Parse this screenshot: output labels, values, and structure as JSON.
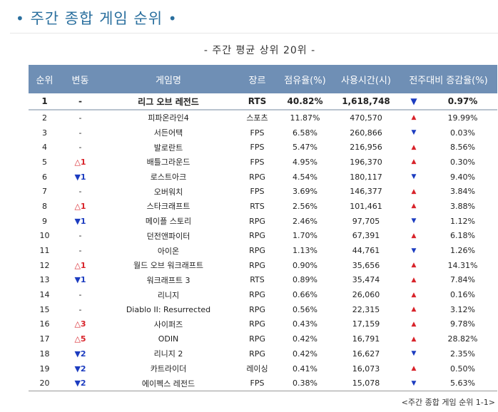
{
  "title": "주간 종합 게임 순위",
  "title_dot": "•",
  "subtitle": "- 주간 평균 상위 20위 -",
  "headers": [
    "순위",
    "변동",
    "게임명",
    "장르",
    "점유율(%)",
    "사용시간(시)",
    "전주대비 증감율(%)"
  ],
  "rows": [
    {
      "rank": "1",
      "change_dir": "none",
      "change": "-",
      "game": "리그 오브 레전드",
      "genre": "RTS",
      "share": "40.82%",
      "hours": "1,618,748",
      "trend": "down",
      "rate": "0.97%"
    },
    {
      "rank": "2",
      "change_dir": "none",
      "change": "-",
      "game": "피파온라인4",
      "genre": "스포츠",
      "share": "11.87%",
      "hours": "470,570",
      "trend": "up",
      "rate": "19.99%"
    },
    {
      "rank": "3",
      "change_dir": "none",
      "change": "-",
      "game": "서든어택",
      "genre": "FPS",
      "share": "6.58%",
      "hours": "260,866",
      "trend": "down",
      "rate": "0.03%"
    },
    {
      "rank": "4",
      "change_dir": "none",
      "change": "-",
      "game": "발로란트",
      "genre": "FPS",
      "share": "5.47%",
      "hours": "216,956",
      "trend": "up",
      "rate": "8.56%"
    },
    {
      "rank": "5",
      "change_dir": "up",
      "change": "1",
      "game": "배틀그라운드",
      "genre": "FPS",
      "share": "4.95%",
      "hours": "196,370",
      "trend": "up",
      "rate": "0.30%"
    },
    {
      "rank": "6",
      "change_dir": "down",
      "change": "1",
      "game": "로스트아크",
      "genre": "RPG",
      "share": "4.54%",
      "hours": "180,117",
      "trend": "down",
      "rate": "9.40%"
    },
    {
      "rank": "7",
      "change_dir": "none",
      "change": "-",
      "game": "오버워치",
      "genre": "FPS",
      "share": "3.69%",
      "hours": "146,377",
      "trend": "up",
      "rate": "3.84%"
    },
    {
      "rank": "8",
      "change_dir": "up",
      "change": "1",
      "game": "스타크래프트",
      "genre": "RTS",
      "share": "2.56%",
      "hours": "101,461",
      "trend": "up",
      "rate": "3.88%"
    },
    {
      "rank": "9",
      "change_dir": "down",
      "change": "1",
      "game": "메이플 스토리",
      "genre": "RPG",
      "share": "2.46%",
      "hours": "97,705",
      "trend": "down",
      "rate": "1.12%"
    },
    {
      "rank": "10",
      "change_dir": "none",
      "change": "-",
      "game": "던전앤파이터",
      "genre": "RPG",
      "share": "1.70%",
      "hours": "67,391",
      "trend": "up",
      "rate": "6.18%"
    },
    {
      "rank": "11",
      "change_dir": "none",
      "change": "-",
      "game": "아이온",
      "genre": "RPG",
      "share": "1.13%",
      "hours": "44,761",
      "trend": "down",
      "rate": "1.26%"
    },
    {
      "rank": "12",
      "change_dir": "up",
      "change": "1",
      "game": "월드 오브 워크래프트",
      "genre": "RPG",
      "share": "0.90%",
      "hours": "35,656",
      "trend": "up",
      "rate": "14.31%"
    },
    {
      "rank": "13",
      "change_dir": "down",
      "change": "1",
      "game": "워크래프트 3",
      "genre": "RTS",
      "share": "0.89%",
      "hours": "35,474",
      "trend": "up",
      "rate": "7.84%"
    },
    {
      "rank": "14",
      "change_dir": "none",
      "change": "-",
      "game": "리니지",
      "genre": "RPG",
      "share": "0.66%",
      "hours": "26,060",
      "trend": "up",
      "rate": "0.16%"
    },
    {
      "rank": "15",
      "change_dir": "none",
      "change": "-",
      "game": "Diablo II: Resurrected",
      "genre": "RPG",
      "share": "0.56%",
      "hours": "22,315",
      "trend": "up",
      "rate": "3.12%"
    },
    {
      "rank": "16",
      "change_dir": "up",
      "change": "3",
      "game": "사이퍼즈",
      "genre": "RPG",
      "share": "0.43%",
      "hours": "17,159",
      "trend": "up",
      "rate": "9.78%"
    },
    {
      "rank": "17",
      "change_dir": "up",
      "change": "5",
      "game": "ODIN",
      "genre": "RPG",
      "share": "0.42%",
      "hours": "16,791",
      "trend": "up",
      "rate": "28.82%"
    },
    {
      "rank": "18",
      "change_dir": "down",
      "change": "2",
      "game": "리니지 2",
      "genre": "RPG",
      "share": "0.42%",
      "hours": "16,627",
      "trend": "down",
      "rate": "2.35%"
    },
    {
      "rank": "19",
      "change_dir": "down",
      "change": "2",
      "game": "카트라이더",
      "genre": "레이싱",
      "share": "0.41%",
      "hours": "16,073",
      "trend": "up",
      "rate": "0.50%"
    },
    {
      "rank": "20",
      "change_dir": "down",
      "change": "2",
      "game": "에이펙스 레전드",
      "genre": "FPS",
      "share": "0.38%",
      "hours": "15,078",
      "trend": "down",
      "rate": "5.63%"
    }
  ],
  "symbols": {
    "rank_up": "△",
    "rank_down": "▼",
    "trend_up": "▲",
    "trend_down": "▼"
  },
  "colors": {
    "up": "#d8232a",
    "down": "#1c3cc0",
    "header_bg": "#6f8fb5",
    "title": "#2a6f9e"
  },
  "caption": "<주간 종합 게임 순위 1-1>"
}
